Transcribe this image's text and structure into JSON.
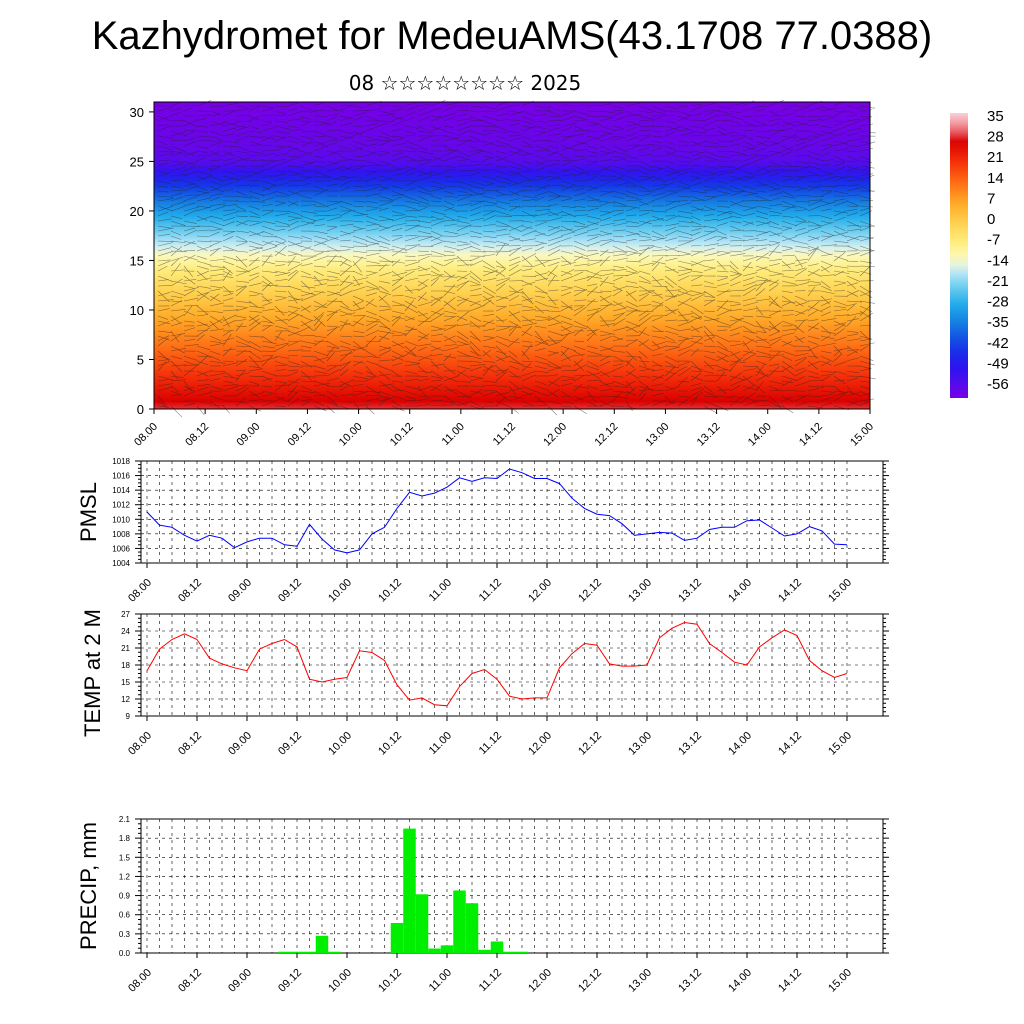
{
  "title": "Kazhydromet for MedeuAMS(43.1708 77.0388)",
  "subtitle": "08 ☆☆☆☆☆☆☆☆ 2025",
  "time_labels": [
    "08.00",
    "08.12",
    "09.00",
    "09.12",
    "10.00",
    "10.12",
    "11.00",
    "11.12",
    "12.00",
    "12.12",
    "13.00",
    "13.12",
    "14.00",
    "14.12",
    "15.00"
  ],
  "chart_data": [
    {
      "type": "heatmap",
      "title": "",
      "x": [
        "08.00",
        "08.12",
        "09.00",
        "09.12",
        "10.00",
        "10.12",
        "11.00",
        "11.12",
        "12.00",
        "12.12",
        "13.00",
        "13.12",
        "14.00",
        "14.12",
        "15.00"
      ],
      "yticks": [
        0,
        5,
        10,
        15,
        20,
        25,
        30
      ],
      "ylim": [
        0,
        31
      ],
      "colorbar": {
        "labels": [
          "35",
          "28",
          "21",
          "14",
          "7",
          "0",
          "-7",
          "-14",
          "-21",
          "-28",
          "-35",
          "-42",
          "-49",
          "-56"
        ],
        "range": [
          -60,
          38
        ]
      },
      "temperature_profile": [
        {
          "height": 0,
          "value": 30
        },
        {
          "height": 5,
          "value": 17
        },
        {
          "height": 10,
          "value": 5
        },
        {
          "height": 14,
          "value": -6
        },
        {
          "height": 17,
          "value": -18
        },
        {
          "height": 20,
          "value": -30
        },
        {
          "height": 23,
          "value": -45
        },
        {
          "height": 25,
          "value": -56
        },
        {
          "height": 27,
          "value": -58
        },
        {
          "height": 31,
          "value": -60
        }
      ],
      "overlay": "wind barbs"
    },
    {
      "type": "line",
      "ylabel": "PMSL",
      "ylim": [
        1004,
        1018
      ],
      "yticks": [
        "1004",
        "1006",
        "1008",
        "1010",
        "1012",
        "1014",
        "1016",
        "1018"
      ],
      "color": "#0000ff",
      "x_steps": 56,
      "values": [
        1011,
        1009.2,
        1008.9,
        1007.8,
        1007.0,
        1007.8,
        1007.4,
        1006.1,
        1006.9,
        1007.4,
        1007.4,
        1006.5,
        1006.3,
        1009.3,
        1007.3,
        1005.8,
        1005.4,
        1005.8,
        1008.0,
        1008.9,
        1011.5,
        1013.7,
        1013.2,
        1013.6,
        1014.4,
        1015.7,
        1015.2,
        1015.7,
        1015.6,
        1016.9,
        1016.4,
        1015.6,
        1015.6,
        1014.9,
        1012.9,
        1011.5,
        1010.7,
        1010.5,
        1009.4,
        1007.8,
        1008.0,
        1008.2,
        1008.1,
        1007.1,
        1007.4,
        1008.6,
        1008.9,
        1008.9,
        1009.8,
        1009.9,
        1008.8,
        1007.7,
        1008.0,
        1009.0,
        1008.4,
        1006.6,
        1006.5
      ]
    },
    {
      "type": "line",
      "ylabel": "TEMP at 2 M",
      "ylim": [
        9,
        27
      ],
      "yticks": [
        "9",
        "12",
        "15",
        "18",
        "21",
        "24",
        "27"
      ],
      "color": "#ff0000",
      "x_steps": 56,
      "values": [
        17.0,
        20.8,
        22.5,
        23.5,
        22.5,
        19.2,
        18.2,
        17.5,
        17.0,
        20.8,
        21.8,
        22.5,
        21.2,
        15.5,
        15.0,
        15.5,
        15.8,
        20.5,
        20.2,
        18.8,
        14.5,
        11.8,
        12.2,
        11.0,
        10.8,
        14.2,
        16.5,
        17.2,
        15.5,
        12.5,
        12.0,
        12.2,
        12.2,
        17.5,
        20.0,
        21.8,
        21.5,
        18.2,
        17.8,
        17.8,
        18.0,
        22.8,
        24.5,
        25.5,
        25.2,
        21.8,
        20.2,
        18.5,
        18.0,
        21.2,
        22.8,
        24.2,
        23.2,
        18.8,
        17.0,
        15.8,
        16.5
      ]
    },
    {
      "type": "bar",
      "ylabel": "PRECIP, mm",
      "ylim": [
        0,
        2.1
      ],
      "yticks": [
        "0.0",
        "0.3",
        "0.6",
        "0.9",
        "1.2",
        "1.5",
        "1.8",
        "2.1"
      ],
      "color": "#00ee00",
      "x_steps": 56,
      "values": [
        0,
        0,
        0,
        0,
        0,
        0,
        0,
        0,
        0,
        0,
        0,
        0.02,
        0.02,
        0.02,
        0.27,
        0.02,
        0,
        0,
        0,
        0,
        0.47,
        1.95,
        0.92,
        0.07,
        0.12,
        0.98,
        0.78,
        0.05,
        0.18,
        0.02,
        0.02,
        0,
        0,
        0,
        0,
        0,
        0,
        0,
        0,
        0,
        0,
        0,
        0,
        0,
        0,
        0,
        0,
        0,
        0,
        0,
        0,
        0,
        0,
        0,
        0,
        0
      ]
    }
  ]
}
